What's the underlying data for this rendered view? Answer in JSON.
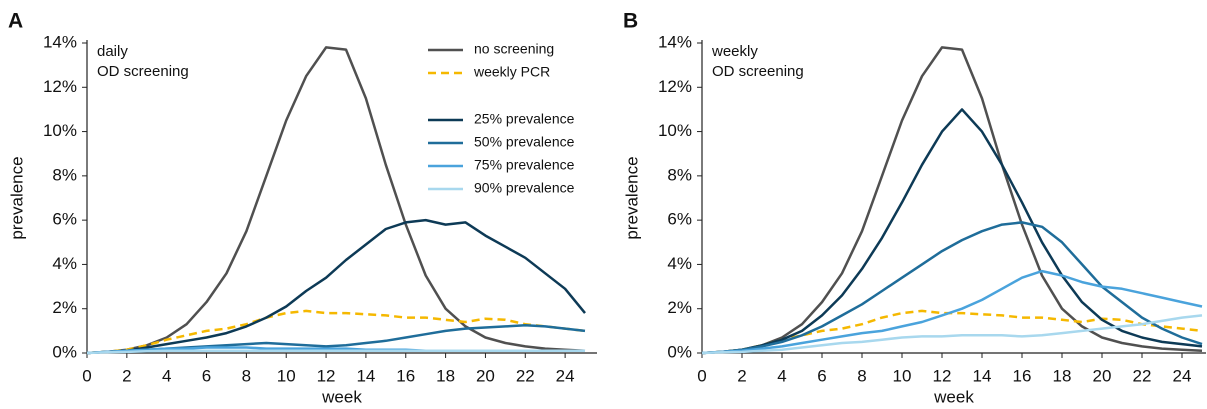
{
  "chart_data": [
    {
      "type": "line",
      "panel": "A",
      "annotation": [
        "daily",
        "OD screening"
      ],
      "xlabel": "week",
      "ylabel": "prevalence",
      "xlim": [
        0,
        25.6
      ],
      "ylim": [
        0,
        14
      ],
      "xticks": [
        0,
        2,
        4,
        6,
        8,
        10,
        12,
        14,
        16,
        18,
        20,
        22,
        24
      ],
      "yticks": [
        {
          "value": 0,
          "label": "0%"
        },
        {
          "value": 2,
          "label": "2%"
        },
        {
          "value": 4,
          "label": "4%"
        },
        {
          "value": 6,
          "label": "6%"
        },
        {
          "value": 8,
          "label": "8%"
        },
        {
          "value": 10,
          "label": "10%"
        },
        {
          "value": 12,
          "label": "12%"
        },
        {
          "value": 14,
          "label": "14%"
        }
      ],
      "legend": "upper right",
      "x": [
        0,
        1,
        2,
        3,
        4,
        5,
        6,
        7,
        8,
        9,
        10,
        11,
        12,
        13,
        14,
        15,
        16,
        17,
        18,
        19,
        20,
        21,
        22,
        23,
        24,
        25
      ],
      "series": [
        {
          "name": "no screening",
          "color": "#505050",
          "values": [
            0,
            0.05,
            0.15,
            0.35,
            0.7,
            1.3,
            2.3,
            3.6,
            5.5,
            8.0,
            10.5,
            12.5,
            13.8,
            13.7,
            11.5,
            8.5,
            5.8,
            3.5,
            2.0,
            1.2,
            0.7,
            0.45,
            0.3,
            0.2,
            0.15,
            0.1
          ]
        },
        {
          "name": "weekly PCR",
          "color": "#f5b800",
          "dashed": true,
          "values": [
            0,
            0.05,
            0.15,
            0.35,
            0.6,
            0.8,
            1.0,
            1.1,
            1.3,
            1.6,
            1.8,
            1.9,
            1.8,
            1.8,
            1.75,
            1.7,
            1.6,
            1.6,
            1.5,
            1.4,
            1.55,
            1.5,
            1.3,
            1.2,
            1.1,
            1.0
          ]
        },
        {
          "name": "25% prevalence",
          "color": "#0d3a56",
          "values": [
            0,
            0.05,
            0.1,
            0.25,
            0.4,
            0.55,
            0.7,
            0.9,
            1.2,
            1.6,
            2.1,
            2.8,
            3.4,
            4.2,
            4.9,
            5.6,
            5.9,
            6.0,
            5.8,
            5.9,
            5.3,
            4.8,
            4.3,
            3.6,
            2.9,
            1.8
          ]
        },
        {
          "name": "50% prevalence",
          "color": "#1f6d9a",
          "values": [
            0,
            0.05,
            0.1,
            0.15,
            0.2,
            0.25,
            0.3,
            0.35,
            0.4,
            0.45,
            0.4,
            0.35,
            0.3,
            0.35,
            0.45,
            0.55,
            0.7,
            0.85,
            1.0,
            1.1,
            1.15,
            1.2,
            1.25,
            1.2,
            1.1,
            1.0
          ]
        },
        {
          "name": "75% prevalence",
          "color": "#4aa3dc",
          "values": [
            0,
            0.05,
            0.1,
            0.15,
            0.2,
            0.2,
            0.25,
            0.25,
            0.25,
            0.2,
            0.2,
            0.2,
            0.2,
            0.2,
            0.15,
            0.15,
            0.15,
            0.1,
            0.1,
            0.1,
            0.1,
            0.1,
            0.1,
            0.1,
            0.1,
            0.1
          ]
        },
        {
          "name": "90% prevalence",
          "color": "#a8d8ee",
          "values": [
            0,
            0.03,
            0.05,
            0.08,
            0.1,
            0.1,
            0.1,
            0.1,
            0.1,
            0.1,
            0.1,
            0.1,
            0.1,
            0.1,
            0.1,
            0.1,
            0.1,
            0.1,
            0.1,
            0.1,
            0.1,
            0.1,
            0.1,
            0.1,
            0.1,
            0.1
          ]
        }
      ]
    },
    {
      "type": "line",
      "panel": "B",
      "annotation": [
        "weekly",
        "OD screening"
      ],
      "xlabel": "week",
      "ylabel": "prevalence",
      "xlim": [
        0,
        25.2
      ],
      "ylim": [
        0,
        14
      ],
      "xticks": [
        0,
        2,
        4,
        6,
        8,
        10,
        12,
        14,
        16,
        18,
        20,
        22,
        24
      ],
      "yticks": [
        {
          "value": 0,
          "label": "0%"
        },
        {
          "value": 2,
          "label": "2%"
        },
        {
          "value": 4,
          "label": "4%"
        },
        {
          "value": 6,
          "label": "6%"
        },
        {
          "value": 8,
          "label": "8%"
        },
        {
          "value": 10,
          "label": "10%"
        },
        {
          "value": 12,
          "label": "12%"
        },
        {
          "value": 14,
          "label": "14%"
        }
      ],
      "x": [
        0,
        1,
        2,
        3,
        4,
        5,
        6,
        7,
        8,
        9,
        10,
        11,
        12,
        13,
        14,
        15,
        16,
        17,
        18,
        19,
        20,
        21,
        22,
        23,
        24,
        25
      ],
      "series": [
        {
          "color": "#505050",
          "values": [
            0,
            0.05,
            0.15,
            0.35,
            0.7,
            1.3,
            2.3,
            3.6,
            5.5,
            8.0,
            10.5,
            12.5,
            13.8,
            13.7,
            11.5,
            8.5,
            5.8,
            3.5,
            2.0,
            1.2,
            0.7,
            0.45,
            0.3,
            0.2,
            0.15,
            0.1
          ]
        },
        {
          "color": "#f5b800",
          "dashed": true,
          "values": [
            0,
            0.05,
            0.15,
            0.35,
            0.6,
            0.8,
            1.0,
            1.1,
            1.3,
            1.6,
            1.8,
            1.9,
            1.8,
            1.8,
            1.75,
            1.7,
            1.6,
            1.6,
            1.5,
            1.4,
            1.55,
            1.5,
            1.3,
            1.2,
            1.1,
            1.0
          ]
        },
        {
          "color": "#0d3a56",
          "values": [
            0,
            0.05,
            0.15,
            0.35,
            0.6,
            1.0,
            1.7,
            2.6,
            3.8,
            5.2,
            6.8,
            8.5,
            10.0,
            11.0,
            10.0,
            8.5,
            6.8,
            5.0,
            3.5,
            2.3,
            1.5,
            1.0,
            0.7,
            0.5,
            0.4,
            0.3
          ]
        },
        {
          "color": "#1f6d9a",
          "values": [
            0,
            0.05,
            0.15,
            0.3,
            0.5,
            0.8,
            1.2,
            1.7,
            2.2,
            2.8,
            3.4,
            4.0,
            4.6,
            5.1,
            5.5,
            5.8,
            5.9,
            5.7,
            5.0,
            4.0,
            3.0,
            2.3,
            1.6,
            1.1,
            0.7,
            0.4
          ]
        },
        {
          "color": "#4aa3dc",
          "values": [
            0,
            0.05,
            0.1,
            0.2,
            0.3,
            0.45,
            0.6,
            0.75,
            0.9,
            1.0,
            1.2,
            1.4,
            1.7,
            2.0,
            2.4,
            2.9,
            3.4,
            3.7,
            3.5,
            3.2,
            3.0,
            2.9,
            2.7,
            2.5,
            2.3,
            2.1
          ]
        },
        {
          "color": "#a8d8ee",
          "values": [
            0,
            0.03,
            0.05,
            0.1,
            0.15,
            0.25,
            0.35,
            0.45,
            0.5,
            0.6,
            0.7,
            0.75,
            0.75,
            0.8,
            0.8,
            0.8,
            0.75,
            0.8,
            0.9,
            1.0,
            1.1,
            1.2,
            1.3,
            1.45,
            1.6,
            1.7
          ]
        }
      ]
    }
  ]
}
